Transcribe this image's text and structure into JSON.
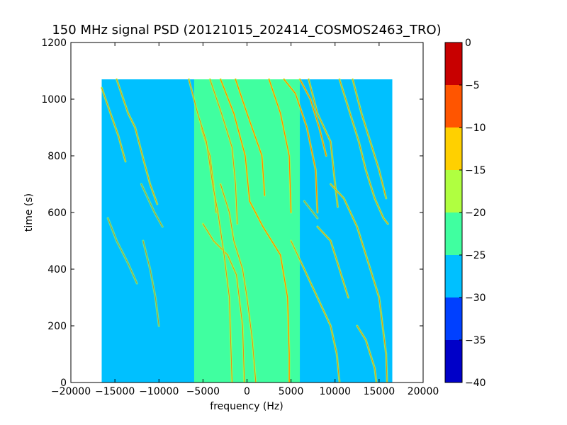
{
  "chart_data": {
    "type": "heatmap",
    "title": "150 MHz signal PSD (20121015_202414_COSMOS2463_TRO)",
    "xlabel": "frequency (Hz)",
    "ylabel": "time (s)",
    "xlim": [
      -20000,
      20000
    ],
    "ylim": [
      0,
      1200
    ],
    "xticks": [
      -20000,
      -15000,
      -10000,
      -5000,
      0,
      5000,
      10000,
      15000,
      20000
    ],
    "xtick_labels": [
      "−20000",
      "−15000",
      "−10000",
      "−5000",
      "0",
      "5000",
      "10000",
      "15000",
      "20000"
    ],
    "yticks": [
      0,
      200,
      400,
      600,
      800,
      1000,
      1200
    ],
    "ytick_labels": [
      "0",
      "200",
      "400",
      "600",
      "800",
      "1000",
      "1200"
    ],
    "data_extent": {
      "x": [
        -16500,
        16500
      ],
      "y": [
        0,
        1070
      ]
    },
    "background_level": -27.5,
    "center_band": {
      "x": [
        -6000,
        6000
      ],
      "level": -22.5
    },
    "colorbar": {
      "range": [
        -40,
        0
      ],
      "ticks": [
        0,
        -5,
        -10,
        -15,
        -20,
        -25,
        -30,
        -35,
        -40
      ],
      "tick_labels": [
        "0",
        "−5",
        "−10",
        "−15",
        "−20",
        "−25",
        "−30",
        "−35",
        "−40"
      ],
      "bins": [
        {
          "from": -40,
          "to": -35,
          "color": "#0000c8"
        },
        {
          "from": -35,
          "to": -30,
          "color": "#0040ff"
        },
        {
          "from": -30,
          "to": -25,
          "color": "#00c0ff"
        },
        {
          "from": -25,
          "to": -20,
          "color": "#40ffa0"
        },
        {
          "from": -20,
          "to": -15,
          "color": "#b0ff40"
        },
        {
          "from": -15,
          "to": -10,
          "color": "#ffd000"
        },
        {
          "from": -10,
          "to": -5,
          "color": "#ff5500"
        },
        {
          "from": -5,
          "to": 0,
          "color": "#c80000"
        }
      ]
    },
    "traces": [
      {
        "level": -12.5,
        "points": [
          [
            4800,
            0
          ],
          [
            4800,
            100
          ],
          [
            4600,
            300
          ],
          [
            3800,
            450
          ],
          [
            1800,
            550
          ],
          [
            300,
            640
          ],
          [
            -200,
            800
          ],
          [
            -1500,
            950
          ],
          [
            -3000,
            1070
          ]
        ]
      },
      {
        "level": -12.5,
        "points": [
          [
            5000,
            600
          ],
          [
            4800,
            800
          ],
          [
            3800,
            950
          ],
          [
            2500,
            1070
          ]
        ]
      },
      {
        "level": -12.5,
        "points": [
          [
            8000,
            600
          ],
          [
            7800,
            750
          ],
          [
            6800,
            900
          ],
          [
            5500,
            1020
          ],
          [
            4200,
            1070
          ]
        ]
      },
      {
        "level": -12.5,
        "points": [
          [
            9000,
            800
          ],
          [
            8200,
            900
          ],
          [
            7200,
            1000
          ],
          [
            6000,
            1070
          ]
        ]
      },
      {
        "level": -12.5,
        "points": [
          [
            2000,
            660
          ],
          [
            1700,
            800
          ],
          [
            0,
            950
          ],
          [
            -1300,
            1070
          ]
        ]
      },
      {
        "level": -17.5,
        "points": [
          [
            -3000,
            700
          ],
          [
            -2000,
            600
          ],
          [
            -1500,
            500
          ],
          [
            -1000,
            450
          ],
          [
            -500,
            400
          ],
          [
            0,
            300
          ],
          [
            600,
            150
          ],
          [
            1000,
            0
          ]
        ]
      },
      {
        "level": -17.5,
        "points": [
          [
            -5000,
            560
          ],
          [
            -3800,
            500
          ],
          [
            -2200,
            450
          ],
          [
            -1200,
            380
          ],
          [
            -500,
            200
          ],
          [
            -300,
            0
          ]
        ]
      },
      {
        "level": -17.5,
        "points": [
          [
            -5200,
            900
          ],
          [
            -4200,
            800
          ],
          [
            -3800,
            700
          ],
          [
            -3500,
            600
          ]
        ]
      },
      {
        "level": -17.5,
        "points": [
          [
            -6600,
            1070
          ],
          [
            -5600,
            950
          ],
          [
            -4600,
            850
          ],
          [
            -3900,
            700
          ],
          [
            -3300,
            600
          ],
          [
            -2600,
            450
          ],
          [
            -2000,
            300
          ],
          [
            -1700,
            0
          ]
        ]
      },
      {
        "level": -17.5,
        "points": [
          [
            -4200,
            1070
          ],
          [
            -2900,
            950
          ],
          [
            -1700,
            830
          ],
          [
            -1300,
            700
          ],
          [
            -1100,
            560
          ]
        ]
      },
      {
        "level": -17.5,
        "points": [
          [
            -14800,
            1070
          ],
          [
            -13500,
            950
          ],
          [
            -12700,
            900
          ],
          [
            -11700,
            780
          ],
          [
            -11000,
            700
          ],
          [
            -10200,
            630
          ]
        ]
      },
      {
        "level": -17.5,
        "points": [
          [
            -16500,
            1040
          ],
          [
            -15500,
            950
          ],
          [
            -14600,
            870
          ],
          [
            -13800,
            780
          ]
        ]
      },
      {
        "level": -20.0,
        "points": [
          [
            -15800,
            580
          ],
          [
            -14800,
            500
          ],
          [
            -13500,
            420
          ],
          [
            -12500,
            350
          ]
        ]
      },
      {
        "level": -20.0,
        "points": [
          [
            -12000,
            700
          ],
          [
            -10500,
            600
          ],
          [
            -9600,
            550
          ]
        ]
      },
      {
        "level": -20.0,
        "points": [
          [
            -11800,
            500
          ],
          [
            -11000,
            400
          ],
          [
            -10400,
            300
          ],
          [
            -10000,
            200
          ]
        ]
      },
      {
        "level": -17.5,
        "points": [
          [
            7000,
            1070
          ],
          [
            8000,
            950
          ],
          [
            9500,
            850
          ],
          [
            10000,
            700
          ],
          [
            10300,
            620
          ]
        ]
      },
      {
        "level": -17.5,
        "points": [
          [
            10500,
            1070
          ],
          [
            11700,
            950
          ],
          [
            12700,
            850
          ],
          [
            13500,
            750
          ],
          [
            14500,
            650
          ],
          [
            15500,
            580
          ],
          [
            16000,
            560
          ]
        ]
      },
      {
        "level": -17.5,
        "points": [
          [
            12000,
            1070
          ],
          [
            13000,
            950
          ],
          [
            14000,
            850
          ],
          [
            15000,
            750
          ],
          [
            15800,
            650
          ]
        ]
      },
      {
        "level": -17.5,
        "points": [
          [
            5000,
            500
          ],
          [
            6500,
            400
          ],
          [
            8000,
            300
          ],
          [
            9500,
            200
          ],
          [
            10200,
            100
          ],
          [
            10500,
            0
          ]
        ]
      },
      {
        "level": -17.5,
        "points": [
          [
            8000,
            550
          ],
          [
            9500,
            500
          ],
          [
            10500,
            400
          ],
          [
            11500,
            300
          ]
        ]
      },
      {
        "level": -20.0,
        "points": [
          [
            6500,
            640
          ],
          [
            8000,
            580
          ]
        ]
      },
      {
        "level": -17.5,
        "points": [
          [
            9500,
            700
          ],
          [
            11000,
            650
          ],
          [
            12500,
            550
          ],
          [
            14000,
            400
          ],
          [
            15000,
            300
          ],
          [
            15800,
            100
          ],
          [
            15900,
            0
          ]
        ]
      },
      {
        "level": -17.5,
        "points": [
          [
            12500,
            200
          ],
          [
            13500,
            150
          ],
          [
            14500,
            50
          ],
          [
            14700,
            0
          ]
        ]
      }
    ]
  }
}
